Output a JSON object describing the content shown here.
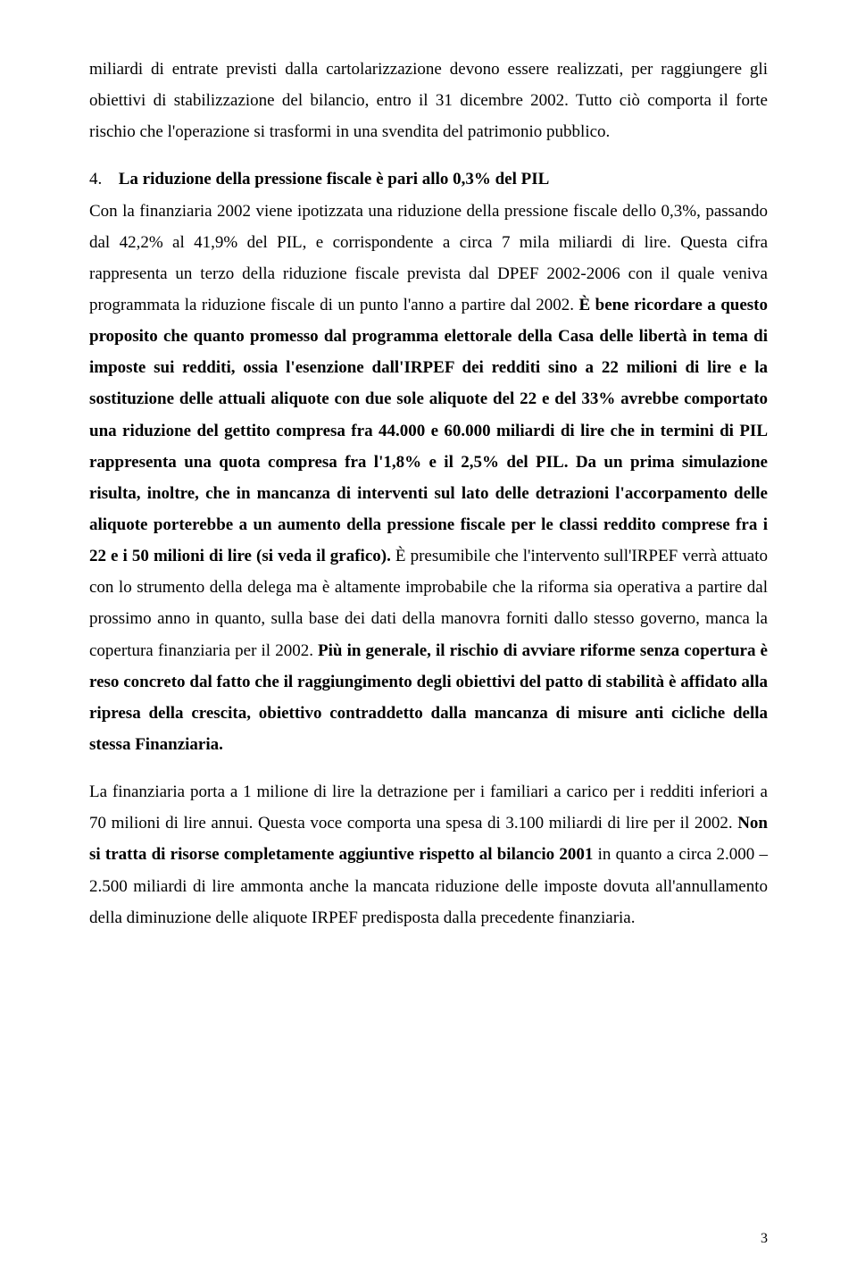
{
  "para1": "miliardi di entrate previsti dalla cartolarizzazione devono essere realizzati, per raggiungere gli obiettivi di stabilizzazione del bilancio, entro il 31 dicembre 2002. Tutto ciò comporta il forte rischio che l'operazione si trasformi in una svendita del patrimonio pubblico.",
  "section": {
    "number": "4.",
    "title": "La riduzione della pressione fiscale è pari allo 0,3% del PIL"
  },
  "p2_a": "Con la finanziaria 2002 viene ipotizzata una riduzione della pressione fiscale dello 0,3%, passando dal 42,2% al 41,9% del PIL, e corrispondente a circa 7 mila miliardi di lire. Questa cifra rappresenta un terzo della riduzione fiscale prevista dal DPEF 2002-2006 con il quale veniva programmata la riduzione fiscale di un punto l'anno a partire dal 2002. ",
  "p2_b": "È bene ricordare a questo proposito che quanto promesso dal programma elettorale della Casa delle libertà in tema di imposte sui redditi, ossia l'esenzione dall'IRPEF dei redditi sino a 22 milioni di lire e la sostituzione delle attuali aliquote con due sole aliquote del 22 e del 33% avrebbe comportato una riduzione del gettito compresa fra 44.000 e 60.000 miliardi di lire che in termini di PIL rappresenta una quota compresa fra l'1,8% e il 2,5% del PIL. Da un prima simulazione risulta, inoltre, che in mancanza di interventi sul lato delle detrazioni l'accorpamento delle aliquote porterebbe a un aumento della pressione fiscale per le classi reddito comprese fra i 22 e i 50 milioni di lire (si veda il grafico).",
  "p2_c": " È presumibile che l'intervento sull'IRPEF verrà attuato con lo strumento della delega ma è altamente improbabile che la riforma sia operativa a partire dal prossimo anno in quanto, sulla base dei dati della manovra forniti dallo stesso governo, manca la copertura finanziaria per il 2002. ",
  "p2_d": "Più in generale, il rischio di avviare riforme senza copertura è reso concreto dal fatto che il raggiungimento degli obiettivi del patto di stabilità è affidato alla ripresa della crescita, obiettivo contraddetto dalla mancanza di misure anti cicliche della stessa Finanziaria.",
  "p3_a": "La finanziaria porta a 1 milione di lire la detrazione per i familiari a carico per i redditi inferiori a 70 milioni di lire annui. Questa voce comporta una spesa di 3.100 miliardi di lire per il 2002.  ",
  "p3_b": "Non si tratta di risorse completamente aggiuntive rispetto al bilancio 2001",
  "p3_c": " in quanto a circa 2.000 –2.500 miliardi di lire ammonta anche la mancata riduzione delle imposte dovuta all'annullamento della diminuzione delle aliquote IRPEF predisposta dalla precedente finanziaria.",
  "pageNumber": "3"
}
